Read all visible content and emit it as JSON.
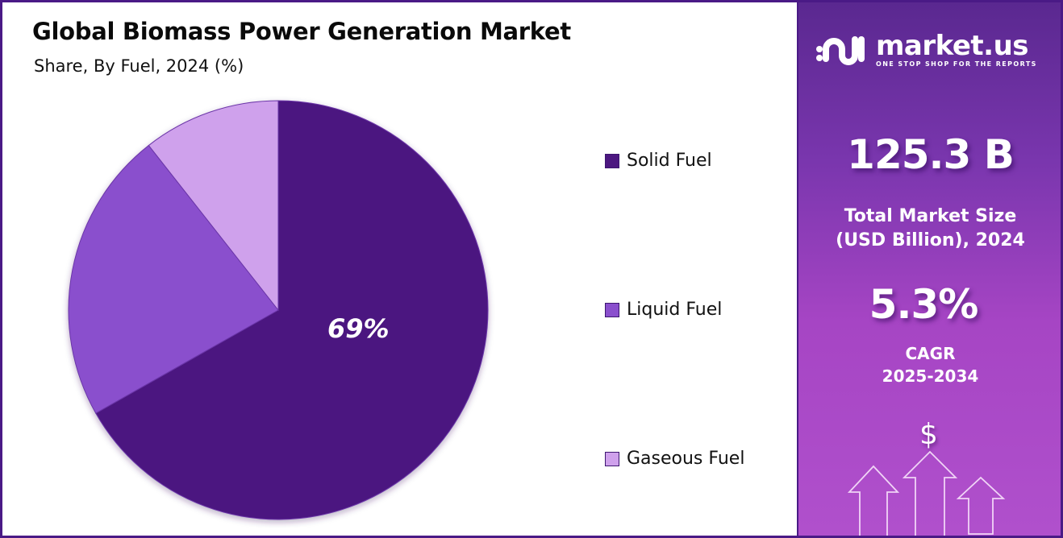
{
  "header": {
    "title": "Global Biomass Power Generation Market",
    "subtitle": "Share, By Fuel, 2024 (%)"
  },
  "chart_data": {
    "type": "pie",
    "title": "Global Biomass Power Generation Market",
    "subtitle": "Share, By Fuel, 2024 (%)",
    "categories": [
      "Solid Fuel",
      "Liquid Fuel",
      "Gaseous Fuel"
    ],
    "values": [
      69,
      21,
      10
    ],
    "colors": [
      "#4c1780",
      "#8a4fcd",
      "#cfa1ec"
    ],
    "data_labels": [
      {
        "category": "Solid Fuel",
        "text": "69%"
      }
    ],
    "start_angle_deg": 0,
    "direction": "clockwise",
    "legend_position": "right"
  },
  "pie": {
    "label": "69%"
  },
  "legend": {
    "items": [
      {
        "label": "Solid Fuel",
        "color": "#4c1780"
      },
      {
        "label": "Liquid Fuel",
        "color": "#8a4fcd"
      },
      {
        "label": "Gaseous Fuel",
        "color": "#cfa1ec"
      }
    ]
  },
  "side_panel": {
    "brand": {
      "name": "market.us",
      "tagline": "ONE STOP SHOP FOR THE REPORTS",
      "icon": "market-us-logo-icon"
    },
    "market_size": {
      "value": "125.3 B",
      "label_line1": "Total Market Size",
      "label_line2": "(USD Billion), 2024"
    },
    "cagr": {
      "value": "5.3%",
      "label_line1": "CAGR",
      "label_line2": "2025-2034"
    },
    "illustration": {
      "symbol": "$",
      "icon": "growth-arrows-icon"
    },
    "colors": {
      "gradient_top": "#5a2890",
      "gradient_bottom": "#b050cc"
    }
  }
}
